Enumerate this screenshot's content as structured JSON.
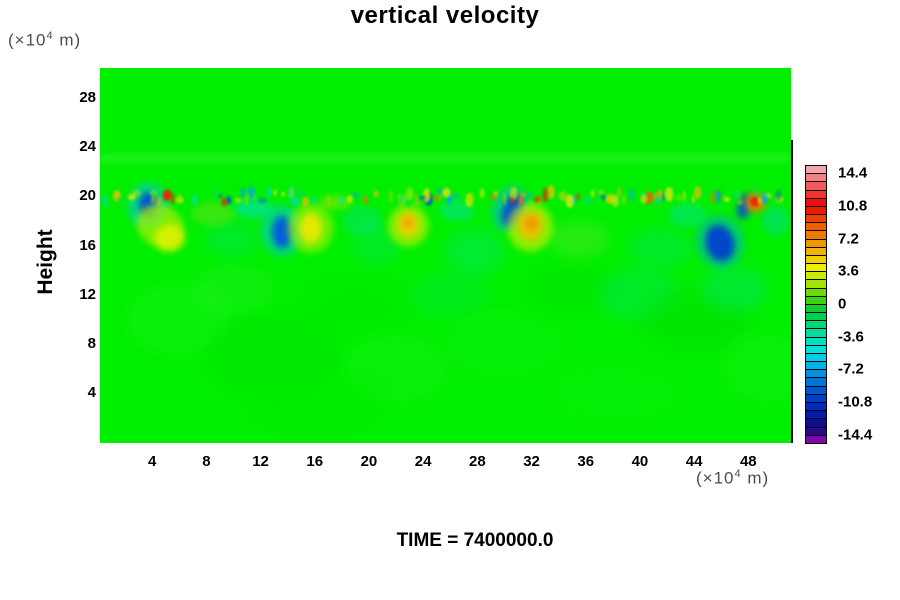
{
  "chart_data": {
    "type": "heatmap",
    "title": "vertical velocity",
    "annotation": "TIME = 7400000.0",
    "ylabel": "Height",
    "y_unit": {
      "pre": "(×10",
      "sup": "4",
      "post": " m)"
    },
    "x_unit": {
      "pre": "(×10",
      "sup": "4",
      "post": " m)"
    },
    "x_ticks": [
      4,
      8,
      12,
      16,
      20,
      24,
      28,
      32,
      36,
      40,
      44,
      48
    ],
    "y_ticks": [
      4,
      8,
      12,
      16,
      20,
      24,
      28
    ],
    "x_range": [
      0.15,
      51.15
    ],
    "y_range": [
      -0.07,
      30.45
    ],
    "grid": false,
    "legend_position": "right-colorbar",
    "colorbar": {
      "tick_labels": [
        "14.4",
        "10.8",
        "7.2",
        "3.6",
        "0",
        "-3.6",
        "-7.2",
        "-10.8",
        "-14.4"
      ],
      "segment_colors": [
        "#F4A6A6",
        "#F28080",
        "#F05A5A",
        "#EE3434",
        "#E81010",
        "#E81C00",
        "#EE4000",
        "#F05E00",
        "#F07A00",
        "#F09600",
        "#F0B200",
        "#F0D000",
        "#F0EC00",
        "#CCEC00",
        "#A0E400",
        "#6CDC00",
        "#38D410",
        "#10CC2C",
        "#00D052",
        "#00D678",
        "#00DC9C",
        "#00E0BE",
        "#00E0DA",
        "#00CCE4",
        "#00B0E8",
        "#0092E0",
        "#0074D8",
        "#0058D0",
        "#0040C8",
        "#002CBA",
        "#001CA8",
        "#0E0E92",
        "#2A0A86",
        "#7C0AA6"
      ]
    },
    "field": {
      "background": "#00EE00",
      "bands": [
        {
          "h": 23.1,
          "half": 0.22,
          "c": "#58F858",
          "o": 0.5
        }
      ],
      "blobs": [
        {
          "x": 6.0,
          "h": 10.0,
          "rx": 4.0,
          "ry": 3.0,
          "c": "#12F412",
          "o": 0.45,
          "b": "lg"
        },
        {
          "x": 13.0,
          "h": 7.0,
          "rx": 5.0,
          "ry": 3.5,
          "c": "#00E400",
          "o": 0.5,
          "b": "lg"
        },
        {
          "x": 10.0,
          "h": 12.5,
          "rx": 3.0,
          "ry": 2.0,
          "c": "#22F022",
          "o": 0.45,
          "b": "lg"
        },
        {
          "x": 19.0,
          "h": 11.0,
          "rx": 4.0,
          "ry": 2.5,
          "c": "#00E800",
          "o": 0.55,
          "b": "lg"
        },
        {
          "x": 22.0,
          "h": 6.0,
          "rx": 4.0,
          "ry": 3.0,
          "c": "#16F216",
          "o": 0.4,
          "b": "lg"
        },
        {
          "x": 26.0,
          "h": 12.0,
          "rx": 3.0,
          "ry": 2.0,
          "c": "#00E25C",
          "o": 0.25,
          "b": "lg"
        },
        {
          "x": 30.0,
          "h": 8.0,
          "rx": 4.5,
          "ry": 3.0,
          "c": "#0CEE0C",
          "o": 0.45,
          "b": "lg"
        },
        {
          "x": 35.0,
          "h": 12.5,
          "rx": 3.5,
          "ry": 2.0,
          "c": "#00E400",
          "o": 0.5,
          "b": "lg"
        },
        {
          "x": 40.0,
          "h": 12.0,
          "rx": 3.0,
          "ry": 2.2,
          "c": "#00E490",
          "o": 0.28,
          "b": "lg"
        },
        {
          "x": 44.0,
          "h": 10.0,
          "rx": 4.0,
          "ry": 2.5,
          "c": "#00DE00",
          "o": 0.5,
          "b": "lg"
        },
        {
          "x": 47.0,
          "h": 12.5,
          "rx": 2.5,
          "ry": 1.8,
          "c": "#00E2A0",
          "o": 0.3,
          "b": "lg"
        },
        {
          "x": 49.5,
          "h": 6.0,
          "rx": 3.5,
          "ry": 3.0,
          "c": "#14F214",
          "o": 0.4,
          "b": "lg"
        },
        {
          "x": 16.0,
          "h": 3.0,
          "rx": 5.0,
          "ry": 2.5,
          "c": "#00EA00",
          "o": 0.5,
          "b": "lg"
        },
        {
          "x": 38.0,
          "h": 4.0,
          "rx": 5.0,
          "ry": 2.5,
          "c": "#0CF00C",
          "o": 0.4,
          "b": "lg"
        },
        {
          "x": 9.8,
          "h": 16.5,
          "rx": 1.8,
          "ry": 1.4,
          "c": "#00E290",
          "o": 0.3,
          "b": "lg"
        },
        {
          "x": 20.5,
          "h": 16.0,
          "rx": 2.0,
          "ry": 1.6,
          "c": "#00E660",
          "o": 0.35,
          "b": "lg"
        },
        {
          "x": 27.8,
          "h": 15.5,
          "rx": 2.2,
          "ry": 1.8,
          "c": "#00E8A0",
          "o": 0.3,
          "b": "lg"
        },
        {
          "x": 35.5,
          "h": 16.5,
          "rx": 2.2,
          "ry": 1.5,
          "c": "#70E830",
          "o": 0.35,
          "b": "lg"
        },
        {
          "x": 41.5,
          "h": 15.8,
          "rx": 2.4,
          "ry": 1.6,
          "c": "#00E470",
          "o": 0.35,
          "b": "lg"
        },
        {
          "x": 8.5,
          "h": 18.6,
          "rx": 1.6,
          "ry": 1.0,
          "c": "#78E020",
          "o": 0.45,
          "b": "md"
        },
        {
          "x": 11.5,
          "h": 19.0,
          "rx": 1.4,
          "ry": 0.75,
          "c": "#00E0C8",
          "o": 0.6,
          "b": "md"
        },
        {
          "x": 17.5,
          "h": 19.5,
          "rx": 1.2,
          "ry": 0.6,
          "c": "#A8E800",
          "o": 0.5,
          "b": "md"
        },
        {
          "x": 19.5,
          "h": 18.0,
          "rx": 1.5,
          "ry": 1.2,
          "c": "#00E0A8",
          "o": 0.35,
          "b": "md"
        },
        {
          "x": 26.5,
          "h": 18.8,
          "rx": 1.3,
          "ry": 0.8,
          "c": "#00E0C0",
          "o": 0.45,
          "b": "md"
        },
        {
          "x": 43.5,
          "h": 18.5,
          "rx": 1.4,
          "ry": 1.0,
          "c": "#00E0B8",
          "o": 0.4,
          "b": "md"
        },
        {
          "x": 50.0,
          "h": 18.0,
          "rx": 1.0,
          "ry": 1.2,
          "c": "#00D8C0",
          "o": 0.4,
          "b": "md"
        },
        {
          "x": 3.7,
          "h": 19.2,
          "rx": 1.5,
          "ry": 1.9,
          "c": "#00C8E8",
          "o": 0.55,
          "b": "md"
        },
        {
          "x": 3.7,
          "h": 19.3,
          "rx": 0.65,
          "ry": 1.05,
          "c": "#0048D8",
          "o": 0.95,
          "b": "md"
        },
        {
          "x": 4.6,
          "h": 17.6,
          "rx": 1.8,
          "ry": 1.7,
          "c": "#B0F000",
          "o": 0.7,
          "b": "md",
          "r": 30
        },
        {
          "x": 5.3,
          "h": 16.6,
          "rx": 1.1,
          "ry": 1.1,
          "c": "#ECF000",
          "o": 0.8,
          "b": "md"
        },
        {
          "x": 5.1,
          "h": 20.1,
          "rx": 0.32,
          "ry": 0.45,
          "c": "#EE2000",
          "o": 0.95,
          "b": "sm"
        },
        {
          "x": 13.6,
          "h": 17.2,
          "rx": 1.6,
          "ry": 2.1,
          "c": "#00C8E0",
          "o": 0.5,
          "b": "md"
        },
        {
          "x": 13.6,
          "h": 17.1,
          "rx": 0.75,
          "ry": 1.3,
          "c": "#0058E0",
          "o": 0.95,
          "b": "md"
        },
        {
          "x": 15.7,
          "h": 17.4,
          "rx": 1.7,
          "ry": 2.0,
          "c": "#C0F000",
          "o": 0.55,
          "b": "md"
        },
        {
          "x": 15.7,
          "h": 17.4,
          "rx": 0.85,
          "ry": 1.25,
          "c": "#F0E800",
          "o": 0.9,
          "b": "md"
        },
        {
          "x": 22.9,
          "h": 17.6,
          "rx": 1.5,
          "ry": 1.7,
          "c": "#D8F000",
          "o": 0.6,
          "b": "md"
        },
        {
          "x": 22.9,
          "h": 17.7,
          "rx": 0.8,
          "ry": 1.0,
          "c": "#F0D000",
          "o": 0.9,
          "b": "md"
        },
        {
          "x": 22.9,
          "h": 17.9,
          "rx": 0.4,
          "ry": 0.5,
          "c": "#F0A000",
          "o": 0.9,
          "b": "md"
        },
        {
          "x": 24.4,
          "h": 19.8,
          "rx": 0.3,
          "ry": 0.55,
          "c": "#0048D0",
          "o": 0.9,
          "b": "sm"
        },
        {
          "x": 30.4,
          "h": 19.0,
          "rx": 1.3,
          "ry": 1.9,
          "c": "#00B8E8",
          "o": 0.5,
          "b": "md",
          "r": 20
        },
        {
          "x": 30.6,
          "h": 18.9,
          "rx": 0.7,
          "ry": 1.4,
          "c": "#0048D8",
          "o": 0.95,
          "b": "md",
          "r": 20
        },
        {
          "x": 31.9,
          "h": 17.5,
          "rx": 1.7,
          "ry": 2.0,
          "c": "#E0F000",
          "o": 0.6,
          "b": "md"
        },
        {
          "x": 31.9,
          "h": 17.6,
          "rx": 0.95,
          "ry": 1.2,
          "c": "#F0C000",
          "o": 0.9,
          "b": "md"
        },
        {
          "x": 32.0,
          "h": 17.8,
          "rx": 0.45,
          "ry": 0.55,
          "c": "#F09000",
          "o": 0.9,
          "b": "md"
        },
        {
          "x": 37.8,
          "h": 19.8,
          "rx": 0.35,
          "ry": 0.4,
          "c": "#F0C800",
          "o": 0.8,
          "b": "sm"
        },
        {
          "x": 40.6,
          "h": 19.9,
          "rx": 0.4,
          "ry": 0.5,
          "c": "#F06000",
          "o": 0.9,
          "b": "sm"
        },
        {
          "x": 41.3,
          "h": 19.9,
          "rx": 0.3,
          "ry": 0.4,
          "c": "#F0A000",
          "o": 0.85,
          "b": "sm"
        },
        {
          "x": 45.9,
          "h": 16.3,
          "rx": 1.8,
          "ry": 2.2,
          "c": "#00A8E0",
          "o": 0.45,
          "b": "md",
          "r": -15
        },
        {
          "x": 45.9,
          "h": 16.2,
          "rx": 1.05,
          "ry": 1.5,
          "c": "#0040D0",
          "o": 0.95,
          "b": "md",
          "r": -15
        },
        {
          "x": 47.7,
          "h": 19.2,
          "rx": 0.5,
          "ry": 1.05,
          "c": "#0050D8",
          "o": 0.9,
          "b": "md",
          "r": 15
        },
        {
          "x": 48.5,
          "h": 19.5,
          "rx": 0.75,
          "ry": 0.8,
          "c": "#F07800",
          "o": 0.95,
          "b": "md"
        },
        {
          "x": 48.5,
          "h": 19.6,
          "rx": 0.35,
          "ry": 0.4,
          "c": "#E82000",
          "o": 0.9,
          "b": "sm"
        }
      ],
      "interface_noise": {
        "seed": 77,
        "count": 120,
        "h": 19.95,
        "jitter": 0.85,
        "x_min": 0.3,
        "x_max": 51.0,
        "palette": [
          [
            "#D8EC00",
            3
          ],
          [
            "#F0C000",
            1.5
          ],
          [
            "#F07000",
            1
          ],
          [
            "#E82800",
            0.6
          ],
          [
            "#8CE000",
            3
          ],
          [
            "#00DCC8",
            2
          ],
          [
            "#00A8E8",
            1.4
          ],
          [
            "#0054D0",
            1
          ],
          [
            "#00E060",
            2
          ]
        ]
      }
    }
  }
}
